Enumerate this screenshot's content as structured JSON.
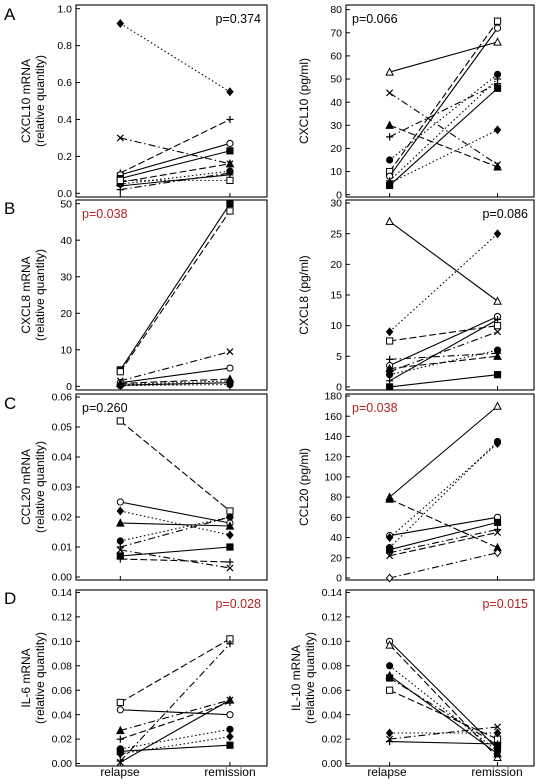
{
  "figure": {
    "panel_letters": [
      "A",
      "B",
      "C",
      "D"
    ],
    "x_categories": [
      "relapse",
      "remission"
    ]
  },
  "colors": {
    "significant": "#b22222",
    "ns": "#000000"
  },
  "chart_data": [
    {
      "id": "A-left",
      "type": "line",
      "panel": "A",
      "ylabel": [
        "CXCL10 mRNA",
        "(relative quantity)"
      ],
      "p_text": "p=0.374",
      "p_pos": "top-right",
      "p_color": "#000000",
      "ylim": [
        -0.02,
        1.02
      ],
      "yticks": [
        0,
        0.2,
        0.4,
        0.6,
        0.8,
        1.0
      ],
      "ytick_labels": [
        "0.0",
        "0.2",
        "0.4",
        "0.6",
        "0.8",
        "1.0"
      ],
      "categories": [
        "relapse",
        "remission"
      ],
      "series": [
        {
          "values": [
            0.92,
            0.55
          ],
          "marker": "diamond-filled",
          "dash": "dot"
        },
        {
          "values": [
            0.3,
            0.16
          ],
          "marker": "x",
          "dash": "dashdot"
        },
        {
          "values": [
            0.11,
            0.4
          ],
          "marker": "plus",
          "dash": "dash"
        },
        {
          "values": [
            0.1,
            0.27
          ],
          "marker": "circle-open",
          "dash": "solid"
        },
        {
          "values": [
            0.08,
            0.23
          ],
          "marker": "square-filled",
          "dash": "solid"
        },
        {
          "values": [
            0.06,
            0.16
          ],
          "marker": "triangle-filled",
          "dash": "dash"
        },
        {
          "values": [
            0.05,
            0.12
          ],
          "marker": "circle-filled",
          "dash": "dot"
        },
        {
          "values": [
            0.04,
            0.1
          ],
          "marker": "plus",
          "dash": "solid"
        },
        {
          "values": [
            0.07,
            0.07
          ],
          "marker": "square-open",
          "dash": "dot"
        },
        {
          "values": [
            0.02,
            0.11
          ],
          "marker": "plus",
          "dash": "dashdot"
        }
      ]
    },
    {
      "id": "A-right",
      "type": "line",
      "panel": "A",
      "ylabel": [
        "CXCL10 (pg/ml)"
      ],
      "p_text": "p=0.066",
      "p_pos": "top-left",
      "p_color": "#000000",
      "ylim": [
        -1,
        82
      ],
      "yticks": [
        0,
        10,
        20,
        30,
        40,
        50,
        60,
        70,
        80
      ],
      "ytick_labels": [
        "0",
        "10",
        "20",
        "30",
        "40",
        "50",
        "60",
        "70",
        "80"
      ],
      "categories": [
        "relapse",
        "remission"
      ],
      "series": [
        {
          "values": [
            53,
            66
          ],
          "marker": "triangle-open",
          "dash": "solid"
        },
        {
          "values": [
            44,
            13
          ],
          "marker": "x",
          "dash": "dashdot"
        },
        {
          "values": [
            30,
            12
          ],
          "marker": "triangle-filled",
          "dash": "dash"
        },
        {
          "values": [
            25,
            48
          ],
          "marker": "plus",
          "dash": "dashdot"
        },
        {
          "values": [
            15,
            52
          ],
          "marker": "circle-filled",
          "dash": "dot"
        },
        {
          "values": [
            10,
            75
          ],
          "marker": "square-open",
          "dash": "dash"
        },
        {
          "values": [
            8,
            72
          ],
          "marker": "circle-open",
          "dash": "solid"
        },
        {
          "values": [
            5,
            28
          ],
          "marker": "diamond-filled",
          "dash": "dot"
        },
        {
          "values": [
            4,
            46
          ],
          "marker": "square-filled",
          "dash": "solid"
        },
        {
          "values": [
            6,
            50
          ],
          "marker": "plus",
          "dash": "dot"
        }
      ]
    },
    {
      "id": "B-left",
      "type": "line",
      "panel": "B",
      "ylabel": [
        "CXCL8 mRNA",
        "(relative quantity)"
      ],
      "p_text": "p=0.038",
      "p_pos": "top-left",
      "p_color": "#b22222",
      "ylim": [
        -1,
        51
      ],
      "yticks": [
        0,
        10,
        20,
        30,
        40,
        50
      ],
      "ytick_labels": [
        "0",
        "10",
        "20",
        "30",
        "40",
        "50"
      ],
      "categories": [
        "relapse",
        "remission"
      ],
      "series": [
        {
          "values": [
            4.5,
            50
          ],
          "marker": "square-filled",
          "dash": "solid"
        },
        {
          "values": [
            4,
            48
          ],
          "marker": "square-open",
          "dash": "dash"
        },
        {
          "values": [
            1.5,
            9.5
          ],
          "marker": "x",
          "dash": "dashdot"
        },
        {
          "values": [
            1,
            5
          ],
          "marker": "circle-open",
          "dash": "solid"
        },
        {
          "values": [
            0.8,
            2
          ],
          "marker": "triangle-filled",
          "dash": "dash"
        },
        {
          "values": [
            0.5,
            1.5
          ],
          "marker": "diamond-filled",
          "dash": "dot"
        },
        {
          "values": [
            0.3,
            1
          ],
          "marker": "plus",
          "dash": "solid"
        },
        {
          "values": [
            0.2,
            0.5
          ],
          "marker": "circle-filled",
          "dash": "dot"
        }
      ]
    },
    {
      "id": "B-right",
      "type": "line",
      "panel": "B",
      "ylabel": [
        "CXCL8  (pg/ml)"
      ],
      "p_text": "p=0.086",
      "p_pos": "top-right",
      "p_color": "#000000",
      "ylim": [
        -0.5,
        30.5
      ],
      "yticks": [
        0,
        5,
        10,
        15,
        20,
        25,
        30
      ],
      "ytick_labels": [
        "0",
        "5",
        "10",
        "15",
        "20",
        "25",
        "30"
      ],
      "categories": [
        "relapse",
        "remission"
      ],
      "series": [
        {
          "values": [
            27,
            14
          ],
          "marker": "triangle-open",
          "dash": "solid"
        },
        {
          "values": [
            9,
            25
          ],
          "marker": "diamond-filled",
          "dash": "dot"
        },
        {
          "values": [
            7.5,
            10
          ],
          "marker": "square-open",
          "dash": "dash"
        },
        {
          "values": [
            4.5,
            5.5
          ],
          "marker": "plus",
          "dash": "dashdot"
        },
        {
          "values": [
            3.5,
            11.5
          ],
          "marker": "circle-open",
          "dash": "solid"
        },
        {
          "values": [
            3,
            5
          ],
          "marker": "triangle-filled",
          "dash": "dash"
        },
        {
          "values": [
            2.5,
            9
          ],
          "marker": "x",
          "dash": "dashdot"
        },
        {
          "values": [
            2,
            6
          ],
          "marker": "circle-filled",
          "dash": "dot"
        },
        {
          "values": [
            1,
            11
          ],
          "marker": "plus",
          "dash": "solid"
        },
        {
          "values": [
            0,
            2
          ],
          "marker": "square-filled",
          "dash": "solid"
        }
      ]
    },
    {
      "id": "C-left",
      "type": "line",
      "panel": "C",
      "ylabel": [
        "CCL20 mRNA",
        "(relative quantity)"
      ],
      "p_text": "p=0.260",
      "p_pos": "top-left",
      "p_color": "#000000",
      "ylim": [
        -0.001,
        0.061
      ],
      "yticks": [
        0,
        0.01,
        0.02,
        0.03,
        0.04,
        0.05,
        0.06
      ],
      "ytick_labels": [
        "0.00",
        "0.01",
        "0.02",
        "0.03",
        "0.04",
        "0.05",
        "0.06"
      ],
      "categories": [
        "relapse",
        "remission"
      ],
      "series": [
        {
          "values": [
            0.052,
            0.022
          ],
          "marker": "square-open",
          "dash": "dash"
        },
        {
          "values": [
            0.025,
            0.018
          ],
          "marker": "circle-open",
          "dash": "solid"
        },
        {
          "values": [
            0.022,
            0.014
          ],
          "marker": "diamond-filled",
          "dash": "dot"
        },
        {
          "values": [
            0.018,
            0.017
          ],
          "marker": "triangle-filled",
          "dash": "solid"
        },
        {
          "values": [
            0.012,
            0.02
          ],
          "marker": "circle-filled",
          "dash": "dot"
        },
        {
          "values": [
            0.01,
            0.02
          ],
          "marker": "plus",
          "dash": "dashdot"
        },
        {
          "values": [
            0.009,
            0.003
          ],
          "marker": "x",
          "dash": "dashdot"
        },
        {
          "values": [
            0.007,
            0.01
          ],
          "marker": "square-filled",
          "dash": "solid"
        },
        {
          "values": [
            0.006,
            0.005
          ],
          "marker": "plus",
          "dash": "dash"
        }
      ]
    },
    {
      "id": "C-right",
      "type": "line",
      "panel": "C",
      "ylabel": [
        "CCL20 (pg/ml)"
      ],
      "p_text": "p=0.038",
      "p_pos": "top-left",
      "p_color": "#b22222",
      "ylim": [
        -2,
        182
      ],
      "yticks": [
        0,
        20,
        40,
        60,
        80,
        100,
        120,
        140,
        160,
        180
      ],
      "ytick_labels": [
        "0",
        "20",
        "40",
        "60",
        "80",
        "100",
        "120",
        "140",
        "160",
        "180"
      ],
      "categories": [
        "relapse",
        "remission"
      ],
      "series": [
        {
          "values": [
            80,
            170
          ],
          "marker": "triangle-open",
          "dash": "solid"
        },
        {
          "values": [
            78,
            30
          ],
          "marker": "triangle-filled",
          "dash": "dash"
        },
        {
          "values": [
            42,
            60
          ],
          "marker": "circle-open",
          "dash": "solid"
        },
        {
          "values": [
            40,
            133
          ],
          "marker": "diamond-filled",
          "dash": "dot"
        },
        {
          "values": [
            30,
            135
          ],
          "marker": "circle-filled",
          "dash": "dot"
        },
        {
          "values": [
            28,
            55
          ],
          "marker": "square-filled",
          "dash": "solid"
        },
        {
          "values": [
            25,
            48
          ],
          "marker": "plus",
          "dash": "dashdot"
        },
        {
          "values": [
            22,
            45
          ],
          "marker": "x",
          "dash": "dash"
        },
        {
          "values": [
            0,
            25
          ],
          "marker": "diamond-open",
          "dash": "dashdot"
        }
      ]
    },
    {
      "id": "D-left",
      "type": "line",
      "panel": "D",
      "ylabel": [
        "IL-6 mRNA",
        "(relative quantity)"
      ],
      "p_text": "p=0.028",
      "p_pos": "top-right",
      "p_color": "#b22222",
      "ylim": [
        -0.002,
        0.142
      ],
      "yticks": [
        0,
        0.02,
        0.04,
        0.06,
        0.08,
        0.1,
        0.12,
        0.14
      ],
      "ytick_labels": [
        "0.00",
        "0.02",
        "0.04",
        "0.06",
        "0.08",
        "0.10",
        "0.12",
        "0.14"
      ],
      "categories": [
        "relapse",
        "remission"
      ],
      "series": [
        {
          "values": [
            0.05,
            0.102
          ],
          "marker": "square-open",
          "dash": "dash"
        },
        {
          "values": [
            0.044,
            0.04
          ],
          "marker": "circle-open",
          "dash": "solid"
        },
        {
          "values": [
            0.027,
            0.052
          ],
          "marker": "triangle-filled",
          "dash": "dashdot"
        },
        {
          "values": [
            0.02,
            0.05
          ],
          "marker": "plus",
          "dash": "dash"
        },
        {
          "values": [
            0.012,
            0.028
          ],
          "marker": "circle-filled",
          "dash": "dot"
        },
        {
          "values": [
            0.01,
            0.015
          ],
          "marker": "square-filled",
          "dash": "solid"
        },
        {
          "values": [
            0.008,
            0.022
          ],
          "marker": "diamond-filled",
          "dash": "dot"
        },
        {
          "values": [
            0.002,
            0.098
          ],
          "marker": "plus",
          "dash": "dashdot"
        },
        {
          "values": [
            0.001,
            0.052
          ],
          "marker": "x",
          "dash": "solid"
        }
      ]
    },
    {
      "id": "D-right",
      "type": "line",
      "panel": "D",
      "ylabel": [
        "IL-10 mRNA",
        "(relative quantity)"
      ],
      "p_text": "p=0.015",
      "p_pos": "top-right",
      "p_color": "#b22222",
      "ylim": [
        -0.002,
        0.142
      ],
      "yticks": [
        0,
        0.02,
        0.04,
        0.06,
        0.08,
        0.1,
        0.12,
        0.14
      ],
      "ytick_labels": [
        "0.00",
        "0.02",
        "0.04",
        "0.06",
        "0.08",
        "0.10",
        "0.12",
        "0.14"
      ],
      "categories": [
        "relapse",
        "remission"
      ],
      "series": [
        {
          "values": [
            0.1,
            0.012
          ],
          "marker": "circle-open",
          "dash": "solid"
        },
        {
          "values": [
            0.097,
            0.005
          ],
          "marker": "triangle-open",
          "dash": "dash"
        },
        {
          "values": [
            0.08,
            0.01
          ],
          "marker": "circle-filled",
          "dash": "dot"
        },
        {
          "values": [
            0.072,
            0.008
          ],
          "marker": "triangle-filled",
          "dash": "solid"
        },
        {
          "values": [
            0.07,
            0.015
          ],
          "marker": "square-filled",
          "dash": "dashdot"
        },
        {
          "values": [
            0.06,
            0.02
          ],
          "marker": "square-open",
          "dash": "dash"
        },
        {
          "values": [
            0.025,
            0.025
          ],
          "marker": "diamond-filled",
          "dash": "dot"
        },
        {
          "values": [
            0.02,
            0.03
          ],
          "marker": "x",
          "dash": "dashdot"
        },
        {
          "values": [
            0.018,
            0.016
          ],
          "marker": "plus",
          "dash": "solid"
        }
      ]
    }
  ]
}
